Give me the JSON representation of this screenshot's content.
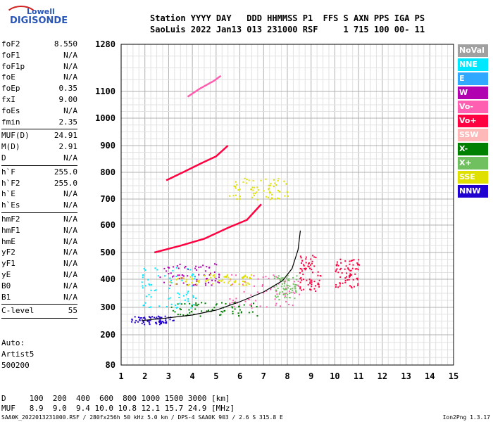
{
  "logo": {
    "line1": "Lowell",
    "line2": "DIGISONDE"
  },
  "header": {
    "line1": "Station YYYY DAY   DDD HHMMSS P1  FFS S AXN PPS IGA PS",
    "line2": "SaoLuis 2022 Jan13 013 231000 RSF     1 715 100 00- 11"
  },
  "params_group1": [
    {
      "label": "foF2",
      "value": "8.550"
    },
    {
      "label": "foF1",
      "value": "N/A"
    },
    {
      "label": "foF1p",
      "value": "N/A"
    },
    {
      "label": "foE",
      "value": "N/A"
    },
    {
      "label": "foEp",
      "value": "0.35"
    },
    {
      "label": "fxI",
      "value": "9.00"
    },
    {
      "label": "foEs",
      "value": "N/A"
    },
    {
      "label": "fmin",
      "value": "2.35"
    }
  ],
  "params_group2": [
    {
      "label": "MUF(D)",
      "value": "24.91"
    },
    {
      "label": "M(D)",
      "value": "2.91"
    },
    {
      "label": "D",
      "value": "N/A"
    }
  ],
  "params_group3": [
    {
      "label": "h`F",
      "value": "255.0"
    },
    {
      "label": "h`F2",
      "value": "255.0"
    },
    {
      "label": "h`E",
      "value": "N/A"
    },
    {
      "label": "h`Es",
      "value": "N/A"
    }
  ],
  "params_group4": [
    {
      "label": "hmF2",
      "value": "N/A"
    },
    {
      "label": "hmF1",
      "value": "N/A"
    },
    {
      "label": "hmE",
      "value": "N/A"
    },
    {
      "label": "yF2",
      "value": "N/A"
    },
    {
      "label": "yF1",
      "value": "N/A"
    },
    {
      "label": "yE",
      "value": "N/A"
    },
    {
      "label": "B0",
      "value": "N/A"
    },
    {
      "label": "B1",
      "value": "N/A"
    }
  ],
  "params_group5": [
    {
      "label": "C-level",
      "value": "55"
    }
  ],
  "auto": {
    "line1": "Auto:",
    "line2": "Artist5",
    "line3": "500200"
  },
  "legend": [
    {
      "label": "NoVal",
      "color": "#a0a0a0"
    },
    {
      "label": "NNE",
      "color": "#00e8ff"
    },
    {
      "label": "E",
      "color": "#30a8ff"
    },
    {
      "label": "W",
      "color": "#b000b0"
    },
    {
      "label": "Vo-",
      "color": "#ff5fb0"
    },
    {
      "label": "Vo+",
      "color": "#ff0040"
    },
    {
      "label": "SSW",
      "color": "#ffb8b8"
    },
    {
      "label": "X-",
      "color": "#008000"
    },
    {
      "label": "X+",
      "color": "#70c060"
    },
    {
      "label": "SSE",
      "color": "#e0e000"
    },
    {
      "label": "NNW",
      "color": "#2000d0"
    }
  ],
  "distance_table": {
    "d_line": "D     100  200  400  600  800 1000 1500 3000 [km]",
    "muf_line": "MUF   8.9  9.0  9.4 10.0 10.8 12.1 15.7 24.9 [MHz]"
  },
  "footer": {
    "left": "SAA0K_2022013231000.RSF / 280fx256h 50 kHz 5.0 km / DPS-4 SAA0K 903 / 2.6 S 315.8 E",
    "right": "Ion2Png 1.3.17"
  },
  "chart_data": {
    "type": "scatter",
    "xlabel": "",
    "ylabel": "",
    "xlim": [
      1,
      15
    ],
    "ylim": [
      80,
      1280
    ],
    "x_ticks": [
      1,
      2,
      3,
      4,
      5,
      6,
      7,
      8,
      9,
      10,
      11,
      12,
      13,
      14,
      15
    ],
    "y_ticks": [
      80,
      200,
      300,
      400,
      500,
      600,
      700,
      800,
      900,
      1000,
      1100,
      1280
    ],
    "y_scale": "nonlinear",
    "grid": true,
    "trace_curves": [
      {
        "name": "F2 O-trace",
        "color": "#000000",
        "points": [
          [
            1.9,
            252
          ],
          [
            3,
            262
          ],
          [
            4,
            272
          ],
          [
            5,
            290
          ],
          [
            6,
            320
          ],
          [
            7,
            355
          ],
          [
            7.8,
            395
          ],
          [
            8.2,
            440
          ],
          [
            8.45,
            510
          ],
          [
            8.55,
            580
          ]
        ]
      },
      {
        "name": "F2 X-trace",
        "color": "#ff0040",
        "points": [
          [
            2.4,
            500
          ],
          [
            3.5,
            525
          ],
          [
            4.5,
            550
          ],
          [
            5.5,
            590
          ],
          [
            6.3,
            620
          ],
          [
            6.9,
            680
          ]
        ]
      },
      {
        "name": "F2 2nd hop",
        "color": "#ff0040",
        "points": [
          [
            2.9,
            770
          ],
          [
            3.6,
            800
          ],
          [
            4.4,
            835
          ],
          [
            5,
            860
          ],
          [
            5.5,
            900
          ]
        ]
      },
      {
        "name": "F2 3rd hop",
        "color": "#ff5fb0",
        "points": [
          [
            3.8,
            1080
          ],
          [
            4.3,
            1110
          ],
          [
            4.9,
            1140
          ],
          [
            5.2,
            1160
          ]
        ]
      }
    ],
    "echo_clusters": [
      {
        "color": "#2000d0",
        "x": [
          1.4,
          3.2
        ],
        "y": [
          240,
          270
        ]
      },
      {
        "color": "#008000",
        "x": [
          3.0,
          6.8
        ],
        "y": [
          270,
          320
        ]
      },
      {
        "color": "#ff5fb0",
        "x": [
          5.5,
          8.5
        ],
        "y": [
          300,
          420
        ]
      },
      {
        "color": "#b000b0",
        "x": [
          2.6,
          5.2
        ],
        "y": [
          380,
          460
        ]
      },
      {
        "color": "#e0e000",
        "x": [
          3.0,
          6.5
        ],
        "y": [
          380,
          420
        ]
      },
      {
        "color": "#ff0040",
        "x": [
          8.5,
          9.4
        ],
        "y": [
          360,
          500
        ]
      },
      {
        "color": "#ff0040",
        "x": [
          10.0,
          11.0
        ],
        "y": [
          370,
          480
        ]
      },
      {
        "color": "#70c060",
        "x": [
          7.4,
          8.4
        ],
        "y": [
          330,
          420
        ]
      },
      {
        "color": "#00e8ff",
        "x": [
          1.8,
          4.2
        ],
        "y": [
          300,
          450
        ]
      },
      {
        "color": "#e0e000",
        "x": [
          5.5,
          8.0
        ],
        "y": [
          700,
          780
        ]
      }
    ]
  }
}
